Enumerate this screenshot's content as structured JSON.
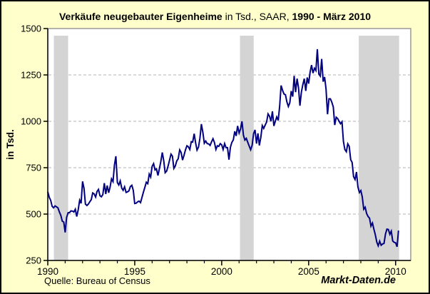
{
  "title": {
    "part1_bold": "Verkäufe neugebauter Eigenheime",
    "part2_regular": " in Tsd., SAAR, ",
    "part3_bold": "1990 -  März 2010"
  },
  "footer": {
    "source": "Quelle: Bureau of Census",
    "watermark": "Markt-Daten.de"
  },
  "chart_data": {
    "type": "line",
    "title": "Verkäufe neugebauter Eigenheime in Tsd., SAAR, 1990 - März 2010",
    "xlabel": "",
    "ylabel": "in Tsd.",
    "ylim": [
      250,
      1500
    ],
    "xlim": [
      1990,
      2010.87
    ],
    "y_ticks": [
      250,
      500,
      750,
      1000,
      1250,
      1500
    ],
    "y_gridlines": [
      500,
      750,
      1000,
      1250
    ],
    "x_major_ticks": [
      1990,
      1995,
      2000,
      2005,
      2010
    ],
    "x_minor_tick_years": [
      1991,
      1992,
      1993,
      1994,
      1996,
      1997,
      1998,
      1999,
      2001,
      2002,
      2003,
      2004,
      2006,
      2007,
      2008,
      2009
    ],
    "grid": "dashed horizontal",
    "legend": "none",
    "recession_bands": [
      [
        1990.35,
        1991.17
      ],
      [
        2001.05,
        2001.84
      ],
      [
        2007.88,
        2010.2
      ]
    ],
    "series": [
      {
        "name": "Verkäufe neugebauter Eigenheime (in Tsd., SAAR)",
        "x_start_year": 1990,
        "x_step": "monthly",
        "last_point": "März 2010",
        "values": [
          620,
          591,
          574,
          542,
          534,
          544,
          539,
          534,
          511,
          493,
          462,
          457,
          401,
          482,
          507,
          508,
          517,
          516,
          511,
          526,
          487,
          524,
          575,
          558,
          676,
          639,
          554,
          546,
          554,
          566,
          578,
          614,
          609,
          592,
          622,
          633,
          599,
          593,
          605,
          667,
          608,
          654,
          615,
          646,
          690,
          675,
          765,
          812,
          670,
          657,
          679,
          640,
          628,
          647,
          617,
          620,
          625,
          648,
          655,
          628,
          557,
          559,
          566,
          570,
          562,
          590,
          618,
          645,
          672,
          664,
          716,
          700,
          757,
          772,
          738,
          744,
          708,
          744,
          783,
          832,
          788,
          723,
          732,
          759,
          790,
          823,
          812,
          746,
          760,
          787,
          798,
          846,
          832,
          791,
          816,
          846,
          868,
          863,
          848,
          890,
          888,
          933,
          884,
          845,
          861,
          910,
          985,
          940,
          882,
          894,
          880,
          878,
          870,
          890,
          906,
          886,
          848,
          868,
          865,
          880,
          873,
          848,
          880,
          858,
          858,
          793,
          860,
          886,
          900,
          946,
          921,
          975,
          937,
          959,
          1000,
          925,
          899,
          908,
          886,
          866,
          847,
          871,
          934,
          954,
          880,
          935,
          870,
          915,
          977,
          962,
          980,
          996,
          1040,
          1027,
          1000,
          1054,
          975,
          1000,
          1024,
          1005,
          1083,
          1193,
          1166,
          1147,
          1143,
          1105,
          1080,
          1100,
          1163,
          1133,
          1245,
          1157,
          1230,
          1181,
          1084,
          1159,
          1198,
          1230,
          1164,
          1236,
          1203,
          1266,
          1303,
          1260,
          1286,
          1274,
          1389,
          1255,
          1244,
          1336,
          1214,
          1239,
          1174,
          1038,
          1121,
          1121,
          1102,
          1077,
          980,
          1022,
          1015,
          1000,
          987,
          998,
          891,
          848,
          836,
          879,
          865,
          793,
          778,
          702,
          686,
          727,
          647,
          616,
          627,
          593,
          526,
          537,
          503,
          487,
          478,
          435,
          452,
          419,
          389,
          349,
          329,
          354,
          332,
          339,
          342,
          393,
          419,
          417,
          391,
          408,
          355,
          348,
          345,
          324,
          411
        ]
      }
    ],
    "colors": {
      "background": "#FFFFCC",
      "plot_background": "#FFFFFF",
      "line": "#000080",
      "recession_band": "#D4D4D4",
      "gridline": "#B3B3B3",
      "plot_frame": "#808080",
      "axis": "#000000",
      "text": "#000000"
    }
  }
}
